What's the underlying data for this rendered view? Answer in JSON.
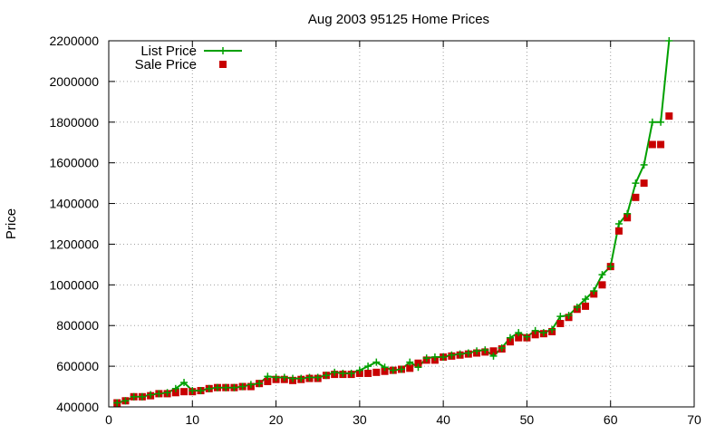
{
  "chart_data": {
    "type": "line",
    "title": "Aug 2003 95125 Home Prices",
    "xlabel": "",
    "ylabel": "Price",
    "xlim": [
      0,
      70
    ],
    "ylim": [
      400000,
      2200000
    ],
    "xticks": [
      0,
      10,
      20,
      30,
      40,
      50,
      60,
      70
    ],
    "yticks": [
      400000,
      600000,
      800000,
      1000000,
      1200000,
      1400000,
      1600000,
      1800000,
      2000000,
      2200000
    ],
    "grid": true,
    "legend_position": "top-left",
    "series": [
      {
        "name": "List Price",
        "style": "line+cross",
        "color": "#00a000",
        "x": [
          1,
          2,
          3,
          4,
          5,
          6,
          7,
          8,
          9,
          10,
          11,
          12,
          13,
          14,
          15,
          16,
          17,
          18,
          19,
          20,
          21,
          22,
          23,
          24,
          25,
          26,
          27,
          28,
          29,
          30,
          31,
          32,
          33,
          34,
          35,
          36,
          37,
          38,
          39,
          40,
          41,
          42,
          43,
          44,
          45,
          46,
          47,
          48,
          49,
          50,
          51,
          52,
          53,
          54,
          55,
          56,
          57,
          58,
          59,
          60,
          61,
          62,
          63,
          64,
          65,
          66,
          67
        ],
        "y": [
          420000,
          430000,
          450000,
          450000,
          460000,
          465000,
          470000,
          490000,
          520000,
          480000,
          480000,
          490000,
          495000,
          495000,
          495000,
          500000,
          510000,
          515000,
          550000,
          545000,
          545000,
          540000,
          540000,
          545000,
          545000,
          555000,
          570000,
          565000,
          565000,
          580000,
          600000,
          620000,
          595000,
          580000,
          585000,
          620000,
          595000,
          640000,
          645000,
          645000,
          655000,
          660000,
          665000,
          675000,
          680000,
          650000,
          690000,
          740000,
          765000,
          745000,
          775000,
          765000,
          780000,
          845000,
          850000,
          890000,
          930000,
          970000,
          1050000,
          1090000,
          1300000,
          1350000,
          1500000,
          1590000,
          1800000,
          1800000,
          2200000
        ]
      },
      {
        "name": "Sale Price",
        "style": "square-points",
        "color": "#c80000",
        "x": [
          1,
          2,
          3,
          4,
          5,
          6,
          7,
          8,
          9,
          10,
          11,
          12,
          13,
          14,
          15,
          16,
          17,
          18,
          19,
          20,
          21,
          22,
          23,
          24,
          25,
          26,
          27,
          28,
          29,
          30,
          31,
          32,
          33,
          34,
          35,
          36,
          37,
          38,
          39,
          40,
          41,
          42,
          43,
          44,
          45,
          46,
          47,
          48,
          49,
          50,
          51,
          52,
          53,
          54,
          55,
          56,
          57,
          58,
          59,
          60,
          61,
          62,
          63,
          64,
          65,
          66,
          67
        ],
        "y": [
          420000,
          430000,
          450000,
          450000,
          455000,
          465000,
          465000,
          470000,
          475000,
          475000,
          480000,
          490000,
          495000,
          495000,
          495000,
          500000,
          500000,
          515000,
          525000,
          535000,
          535000,
          530000,
          535000,
          540000,
          540000,
          555000,
          560000,
          560000,
          560000,
          565000,
          565000,
          570000,
          575000,
          580000,
          585000,
          590000,
          615000,
          630000,
          630000,
          645000,
          650000,
          655000,
          660000,
          665000,
          670000,
          675000,
          685000,
          720000,
          740000,
          740000,
          755000,
          760000,
          770000,
          810000,
          840000,
          880000,
          895000,
          955000,
          1000000,
          1090000,
          1265000,
          1330000,
          1430000,
          1500000,
          1690000,
          1690000,
          1830000
        ]
      }
    ]
  }
}
